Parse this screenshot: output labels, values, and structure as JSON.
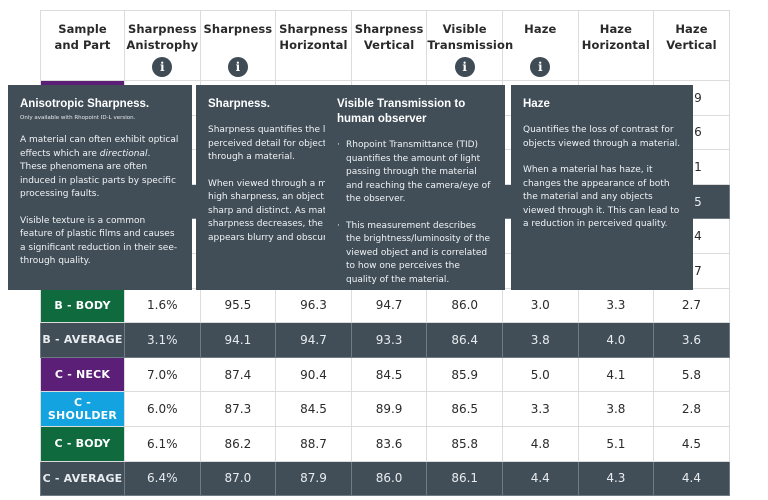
{
  "table": {
    "headers": [
      {
        "label": "Sample\nand Part",
        "line1": "Sample",
        "line2": "and Part",
        "info": false
      },
      {
        "line1": "Sharpness",
        "line2": "Anistrophy",
        "info": true
      },
      {
        "line1": "Sharpness",
        "line2": "",
        "info": true
      },
      {
        "line1": "Sharpness",
        "line2": "Horizontal",
        "info": false
      },
      {
        "line1": "Sharpness",
        "line2": "Vertical",
        "info": false
      },
      {
        "line1": "Visible",
        "line2": "Transmission",
        "info": true
      },
      {
        "line1": "Haze",
        "line2": "",
        "info": true
      },
      {
        "line1": "Haze",
        "line2": "Horizontal",
        "info": false
      },
      {
        "line1": "Haze",
        "line2": "Vertical",
        "info": false
      }
    ],
    "info_icon_glyph": "i",
    "hidden_rows": [
      {
        "color": "#5b1f78",
        "avg": false,
        "last_visible": "9"
      },
      {
        "color": "",
        "avg": false,
        "last_visible": "6"
      },
      {
        "color": "",
        "avg": false,
        "last_visible": "1"
      },
      {
        "color": "",
        "avg": true,
        "last_visible": "5"
      },
      {
        "color": "",
        "avg": false,
        "last_visible": "4"
      },
      {
        "color": "",
        "avg": false,
        "last_visible": "7"
      }
    ],
    "rows": [
      {
        "part": "B - BODY",
        "color": "#0f6b3e",
        "avg": false,
        "values": [
          "1.6%",
          "95.5",
          "96.3",
          "94.7",
          "86.0",
          "3.0",
          "3.3",
          "2.7"
        ]
      },
      {
        "part": "B - AVERAGE",
        "color": "#414e58",
        "avg": true,
        "values": [
          "3.1%",
          "94.1",
          "94.7",
          "93.3",
          "86.4",
          "3.8",
          "4.0",
          "3.6"
        ]
      },
      {
        "part": "C - NECK",
        "color": "#5b1f78",
        "avg": false,
        "values": [
          "7.0%",
          "87.4",
          "90.4",
          "84.5",
          "85.9",
          "5.0",
          "4.1",
          "5.8"
        ]
      },
      {
        "part": "C - SHOULDER",
        "color": "#13a3e0",
        "avg": false,
        "values": [
          "6.0%",
          "87.3",
          "84.5",
          "89.9",
          "86.5",
          "3.3",
          "3.8",
          "2.8"
        ]
      },
      {
        "part": "C - BODY",
        "color": "#0f6b3e",
        "avg": false,
        "values": [
          "6.1%",
          "86.2",
          "88.7",
          "83.6",
          "85.8",
          "4.8",
          "5.1",
          "4.5"
        ]
      },
      {
        "part": "C - AVERAGE",
        "color": "#414e58",
        "avg": true,
        "values": [
          "6.4%",
          "87.0",
          "87.9",
          "86.0",
          "86.1",
          "4.4",
          "4.3",
          "4.4"
        ]
      }
    ]
  },
  "tooltips": {
    "anisotropic": {
      "title": "Anisotropic Sharpness.",
      "subtitle": "Only available with Rhopoint ID-L version.",
      "p1_before": "A material can often exhibit optical effects which are ",
      "p1_em": "directional",
      "p1_after": ". These phenomena are often induced in plastic parts by specific processing faults.",
      "p2": "Visible texture is a common feature of plastic films and causes a significant reduction in their see-through quality."
    },
    "sharpness": {
      "title": "Sharpness.",
      "p1": "Sharpness quantifies the lo",
      "p1_l2": "perceived detail for objects",
      "p1_l3": "through a material.",
      "p2_l1": "When viewed through a ma",
      "p2_l2": "high sharpness, an object a",
      "p2_l3": "sharp and distinct. As mate",
      "p2_l4": "sharpness decreases, the o",
      "p2_l5": "appears blurry and obscure"
    },
    "visible_transmission": {
      "title": "Visible Transmission to human observer",
      "bullets": [
        "Rhopoint Transmittance (TID) quantifies the amount of light passing through the material and reaching the camera/eye of the observer.",
        "This measurement describes the brightness/luminosity of the viewed object and is correlated to how one perceives the quality of the material."
      ]
    },
    "haze": {
      "title": "Haze",
      "p1": "Quantifies the loss of contrast for objects viewed through a material.",
      "p2": "When a material has haze, it changes the appearance of both the material and any objects viewed through it. This can lead to a reduction in perceived quality."
    }
  }
}
